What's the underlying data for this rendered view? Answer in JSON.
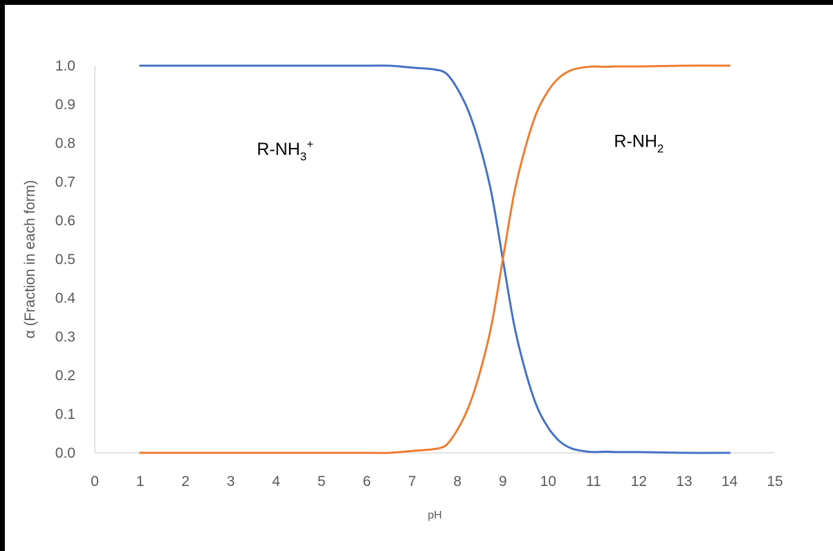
{
  "chart_data": {
    "type": "line",
    "title": "",
    "xlabel": "pH",
    "ylabel": "α (Fraction in each form)",
    "xlim": [
      0,
      15
    ],
    "ylim": [
      0,
      1
    ],
    "x_ticks": [
      "0",
      "1",
      "2",
      "3",
      "4",
      "5",
      "6",
      "7",
      "8",
      "9",
      "10",
      "11",
      "12",
      "13",
      "14",
      "15"
    ],
    "y_ticks": [
      "0.0",
      "0.1",
      "0.2",
      "0.3",
      "0.4",
      "0.5",
      "0.6",
      "0.7",
      "0.8",
      "0.9",
      "1.0"
    ],
    "grid": false,
    "legend": "none",
    "x": [
      1,
      2,
      3,
      4,
      5,
      6,
      6.5,
      7,
      7.25,
      7.5,
      7.75,
      8,
      8.25,
      8.5,
      8.75,
      9,
      9.25,
      9.5,
      9.75,
      10,
      10.25,
      10.5,
      10.75,
      11,
      11.25,
      11.5,
      12,
      13,
      14
    ],
    "series": [
      {
        "color": "#4472C4",
        "values": [
          1.0,
          1.0,
          1.0,
          1.0,
          1.0,
          1.0,
          1.0,
          0.995,
          0.993,
          0.99,
          0.98,
          0.94,
          0.88,
          0.79,
          0.67,
          0.5,
          0.33,
          0.21,
          0.12,
          0.065,
          0.03,
          0.012,
          0.005,
          0.002,
          0.003,
          0.002,
          0.002,
          0.0,
          0.0
        ]
      },
      {
        "color": "#ED7D31",
        "values": [
          0.0,
          0.0,
          0.0,
          0.0,
          0.0,
          0.0,
          0.0,
          0.005,
          0.007,
          0.01,
          0.02,
          0.06,
          0.12,
          0.21,
          0.33,
          0.5,
          0.67,
          0.79,
          0.88,
          0.935,
          0.97,
          0.988,
          0.995,
          0.998,
          0.997,
          0.998,
          0.998,
          1.0,
          1.0
        ]
      }
    ],
    "annotations": [
      {
        "text": "R-NH",
        "sub": "3",
        "sup": "+",
        "x": 4.2,
        "y": 0.77
      },
      {
        "text": "R-NH",
        "sub": "2",
        "sup": "",
        "x": 12.0,
        "y": 0.79
      }
    ]
  }
}
